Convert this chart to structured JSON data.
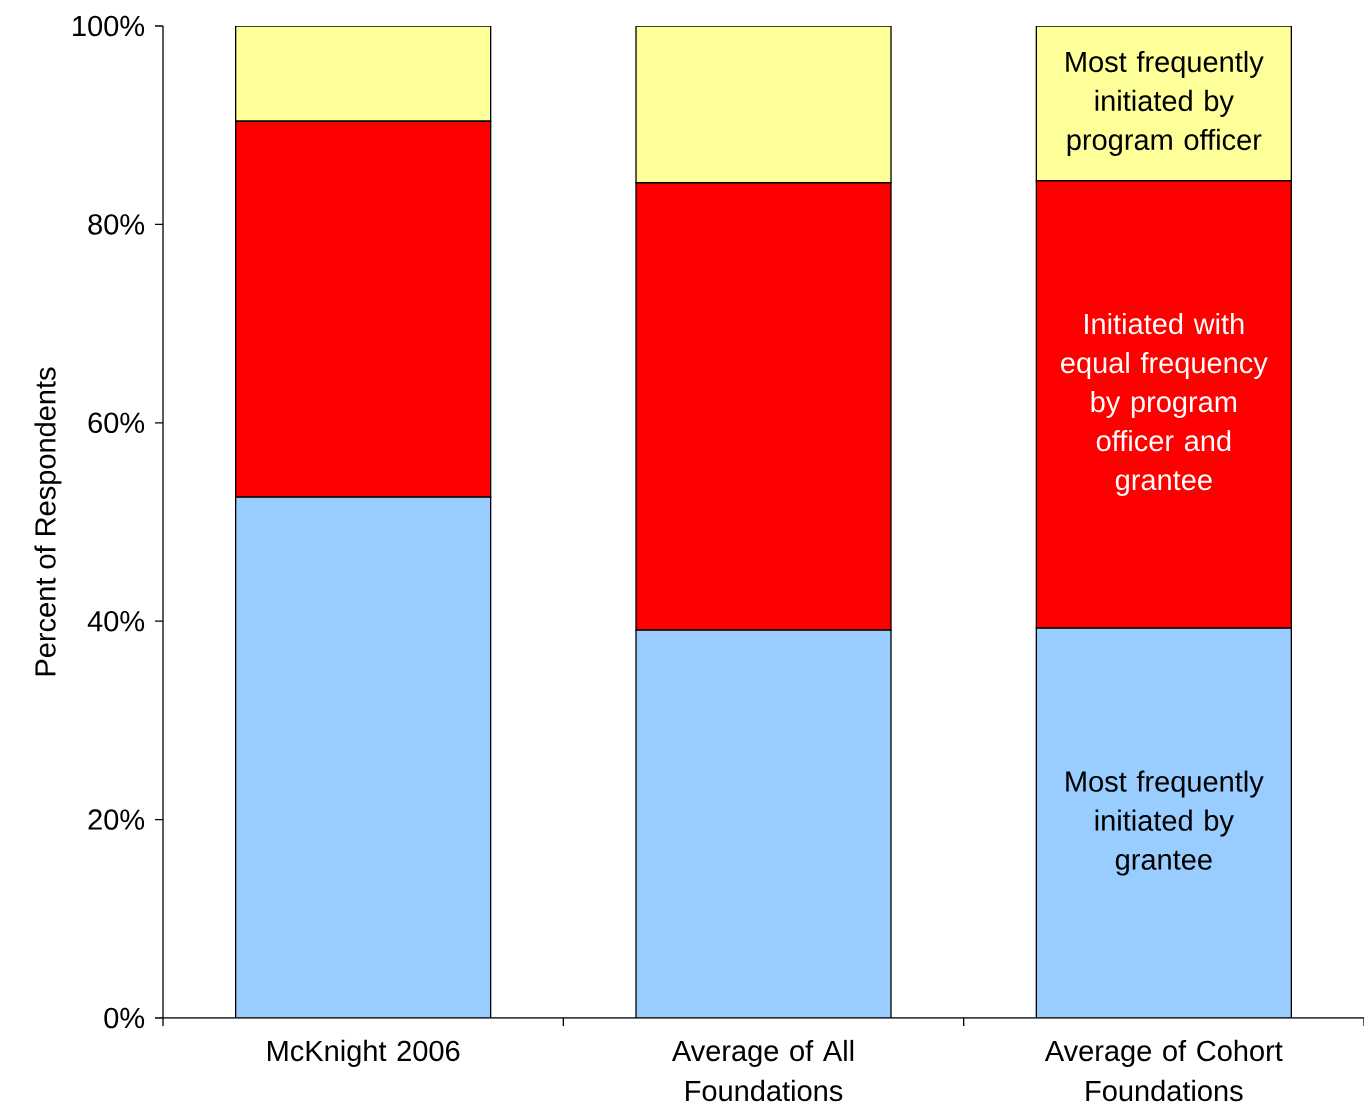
{
  "chart_data": {
    "type": "bar",
    "stacked": true,
    "ylabel": "Percent of Respondents",
    "categories": [
      "McKnight 2006",
      "Average of All Foundations",
      "Average of Cohort Foundations"
    ],
    "series": [
      {
        "name": "Most frequently initiated by grantee",
        "color": "#99ccff",
        "values": [
          52.5,
          39.1,
          39.3
        ]
      },
      {
        "name": "Initiated with equal frequency by program officer and grantee",
        "color": "#ff0000",
        "values": [
          37.9,
          45.1,
          45.1
        ]
      },
      {
        "name": "Most frequently initiated by program officer",
        "color": "#ffff99",
        "values": [
          9.6,
          15.8,
          15.6
        ]
      }
    ],
    "ylim": [
      0,
      100
    ],
    "yticks": [
      {
        "value": 0,
        "label": "0%"
      },
      {
        "value": 20,
        "label": "20%"
      },
      {
        "value": 40,
        "label": "40%"
      },
      {
        "value": 60,
        "label": "60%"
      },
      {
        "value": 80,
        "label": "80%"
      },
      {
        "value": 100,
        "label": "100%"
      }
    ],
    "legend": false,
    "grid": false
  }
}
